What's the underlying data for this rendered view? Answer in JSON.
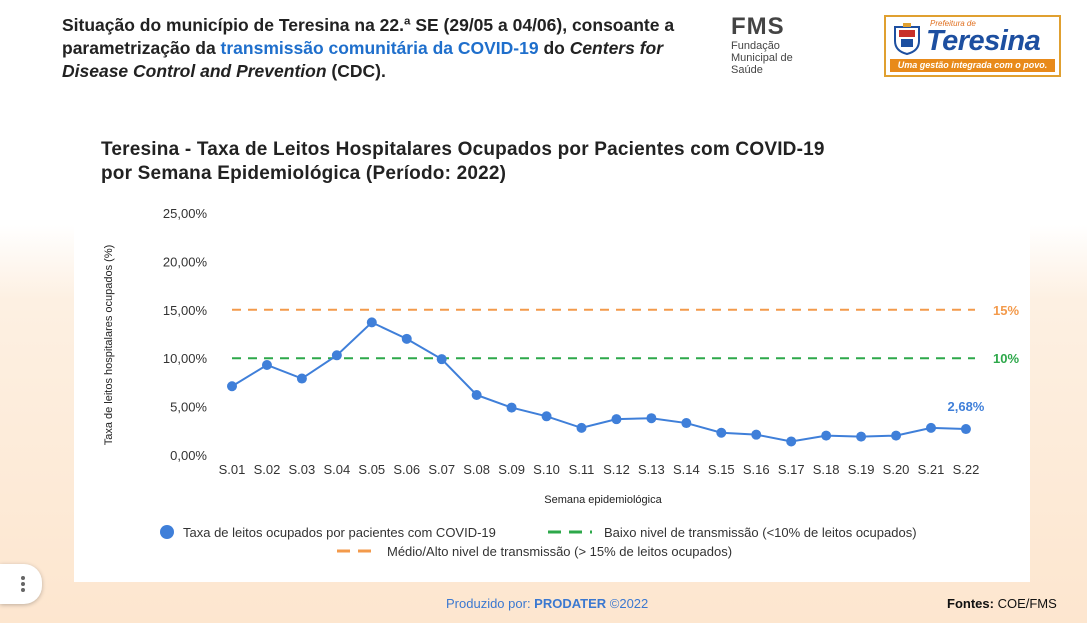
{
  "header": {
    "text_part1": "Situação do município de Teresina na 22.ª SE (29/05 a 04/06), consoante a parametrização da ",
    "text_highlight": "transmissão comunitária da COVID-19",
    "text_part2": " do ",
    "text_italic": "Centers for Disease Control and Prevention",
    "text_part3": " (CDC)."
  },
  "fms_logo": {
    "title": "FMS",
    "subtitle": "Fundação Municipal de Saúde"
  },
  "prefeitura_logo": {
    "top": "Prefeitura de",
    "name": "Teresina",
    "slogan": "Uma gestão integrada com o povo."
  },
  "colors": {
    "series": "#3f7fd9",
    "low": "#2da84a",
    "high": "#f39a4b",
    "accent": "#1f6fcc"
  },
  "chart_data": {
    "type": "line",
    "title_line1": "Teresina - Taxa de Leitos Hospitalares Ocupados por Pacientes com COVID-19",
    "title_line2": "por Semana Epidemiológica (Período: 2022)",
    "xlabel": "Semana epidemiológica",
    "ylabel": "Taxa de leitos hospitalares ocupados (%)",
    "ylim": [
      0,
      25
    ],
    "yticks": [
      "0,00%",
      "5,00%",
      "10,00%",
      "15,00%",
      "20,00%",
      "25,00%"
    ],
    "categories": [
      "S.01",
      "S.02",
      "S.03",
      "S.04",
      "S.05",
      "S.06",
      "S.07",
      "S.08",
      "S.09",
      "S.10",
      "S.11",
      "S.12",
      "S.13",
      "S.14",
      "S.15",
      "S.16",
      "S.17",
      "S.18",
      "S.19",
      "S.20",
      "S.21",
      "S.22"
    ],
    "series": [
      {
        "name": "Taxa de  leitos ocupados por pacientes com COVID-19",
        "values": [
          7.1,
          9.3,
          7.9,
          10.3,
          13.7,
          12.0,
          9.9,
          6.2,
          4.9,
          4.0,
          2.8,
          3.7,
          3.8,
          3.3,
          2.3,
          2.1,
          1.4,
          2.0,
          1.9,
          2.0,
          2.8,
          2.68
        ]
      }
    ],
    "thresholds": [
      {
        "name": "Baixo nivel de transmissão (<10% de leitos ocupados)",
        "value": 10,
        "label": "10%"
      },
      {
        "name": "Médio/Alto nivel de transmissão (> 15% de leitos ocupados)",
        "value": 15,
        "label": "15%"
      }
    ],
    "last_point_label": "2,68%",
    "grid": false,
    "legend_position": "bottom"
  },
  "footer": {
    "produced_prefix": "Produzido por: ",
    "produced_org": "PRODATER",
    "produced_suffix": " ©2022",
    "sources_label": "Fontes:",
    "sources_value": " COE/FMS"
  }
}
